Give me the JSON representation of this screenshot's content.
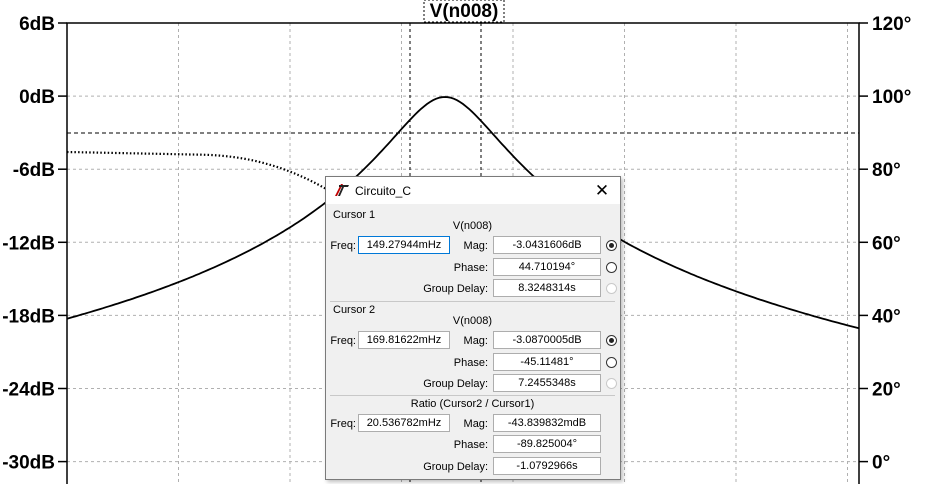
{
  "plot": {
    "trace_name": "V(n008)",
    "left_axis_labels": [
      "6dB",
      "0dB",
      "-6dB",
      "-12dB",
      "-18dB",
      "-24dB",
      "-30dB"
    ],
    "right_axis_labels": [
      "120°",
      "100°",
      "80°",
      "60°",
      "40°",
      "20°",
      "0°"
    ]
  },
  "chart_data": {
    "type": "line",
    "title": "V(n008)",
    "y_left": {
      "range": [
        -30,
        6
      ],
      "ticks": [
        "6dB",
        "0dB",
        "-6dB",
        "-12dB",
        "-18dB",
        "-24dB",
        "-30dB"
      ]
    },
    "y_right": {
      "range": [
        0,
        120
      ],
      "ticks": [
        "120°",
        "100°",
        "80°",
        "60°",
        "40°",
        "20°",
        "0°"
      ]
    },
    "grid": true,
    "series": [
      {
        "style": "solid",
        "axis": "left"
      },
      {
        "style": "dotted",
        "axis": "right"
      }
    ]
  },
  "dialog": {
    "title": "Circuito_C",
    "cursor1": {
      "header": "Cursor 1",
      "trace": "V(n008)",
      "freq_label": "Freq:",
      "freq": "149.27944mHz",
      "mag_label": "Mag:",
      "mag": "-3.0431606dB",
      "phase_label": "Phase:",
      "phase": "44.710194°",
      "gd_label": "Group Delay:",
      "group_delay": "8.3248314s"
    },
    "cursor2": {
      "header": "Cursor 2",
      "trace": "V(n008)",
      "freq_label": "Freq:",
      "freq": "169.81622mHz",
      "mag_label": "Mag:",
      "mag": "-3.0870005dB",
      "phase_label": "Phase:",
      "phase": "-45.11481°",
      "gd_label": "Group Delay:",
      "group_delay": "7.2455348s"
    },
    "ratio": {
      "header": "Ratio (Cursor2 / Cursor1)",
      "freq_label": "Freq:",
      "freq": "20.536782mHz",
      "mag_label": "Mag:",
      "mag": "-43.839832mdB",
      "phase_label": "Phase:",
      "phase": "-89.825004°",
      "gd_label": "Group Delay:",
      "group_delay": "-1.0792966s"
    }
  }
}
